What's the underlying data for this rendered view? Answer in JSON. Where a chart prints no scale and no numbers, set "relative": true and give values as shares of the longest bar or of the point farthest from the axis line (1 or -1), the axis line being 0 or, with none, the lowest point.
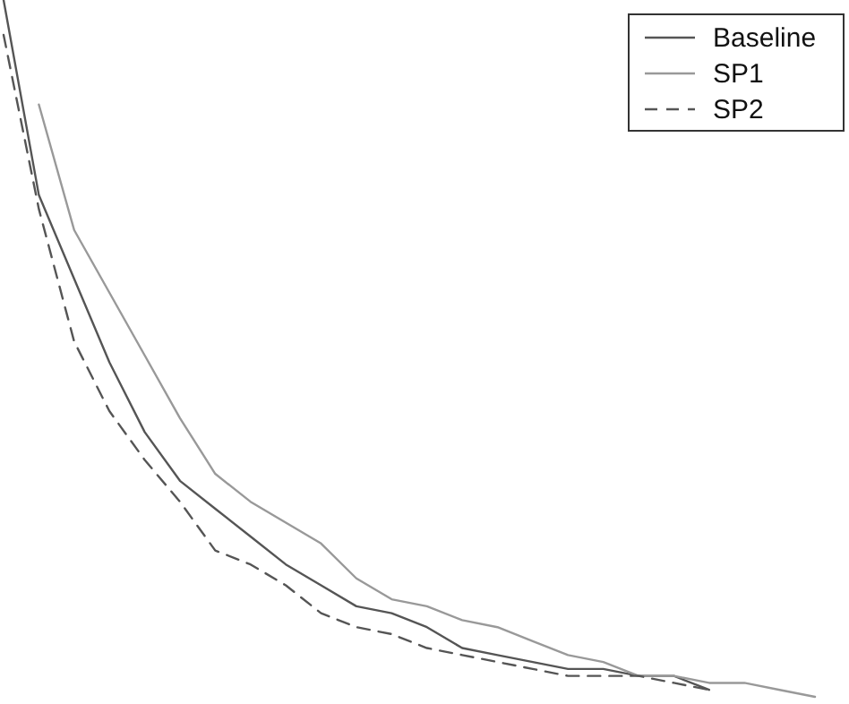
{
  "chart_data": {
    "type": "line",
    "relative": true,
    "legend": "top right",
    "categories": [
      null,
      null,
      null,
      null,
      null,
      null,
      null,
      null,
      null,
      null,
      null,
      null,
      null,
      null,
      null,
      null,
      null,
      null,
      null,
      null,
      null,
      null,
      null,
      null
    ],
    "series": [
      {
        "name": "Baseline",
        "color": "#555555",
        "line_style": "solid",
        "values": [
          1.0,
          0.72,
          0.6,
          0.48,
          0.38,
          0.31,
          0.27,
          0.23,
          0.19,
          0.16,
          0.13,
          0.12,
          0.1,
          0.07,
          0.06,
          0.05,
          0.04,
          0.04,
          0.03,
          0.03,
          0.01,
          null,
          null,
          null
        ]
      },
      {
        "name": "SP1",
        "color": "#999999",
        "line_style": "solid",
        "values": [
          null,
          0.85,
          0.67,
          0.58,
          0.49,
          0.4,
          0.32,
          0.28,
          0.25,
          0.22,
          0.17,
          0.14,
          0.13,
          0.11,
          0.1,
          0.08,
          0.06,
          0.05,
          0.03,
          0.03,
          0.02,
          0.02,
          0.01,
          0
        ]
      },
      {
        "name": "SP2",
        "color": "#555555",
        "line_style": "dashed",
        "values": [
          0.95,
          0.7,
          0.51,
          0.41,
          0.34,
          0.28,
          0.21,
          0.19,
          0.16,
          0.12,
          0.1,
          0.09,
          0.07,
          0.06,
          0.05,
          0.04,
          0.03,
          0.03,
          0.03,
          0.02,
          0.01,
          null,
          null,
          null
        ]
      }
    ]
  }
}
